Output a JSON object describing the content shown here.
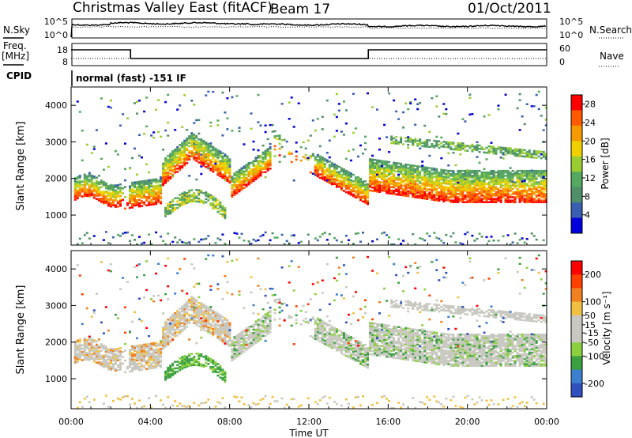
{
  "header": {
    "title": "Christmas Valley East (fitACF)",
    "beam": "Beam 17",
    "date": "01/Oct/2011"
  },
  "mini_panels": {
    "left_labels": {
      "nsky": "N.Sky",
      "freq": "Freq.",
      "freq_unit": "[MHz]",
      "cpid": "CPID"
    },
    "right_labels": {
      "nsearch": "N.Search",
      "nave": "Nave"
    },
    "noise_ticks": [
      "10^5",
      "10^0"
    ],
    "noise_right_ticks": [
      "10^5",
      "10^0"
    ],
    "freq_ticks": [
      "18",
      "8"
    ],
    "nave_ticks": [
      "60",
      "0"
    ],
    "cpid_text": "normal (fast) -151 IF"
  },
  "colors": {
    "power_scale": [
      "#0000dd",
      "#3a5fb0",
      "#4f8f6a",
      "#55a860",
      "#9acd32",
      "#f0d000",
      "#f59a00",
      "#ff5a00",
      "#ff0000"
    ],
    "velocity_scale": [
      "#3050c0",
      "#3c7fd0",
      "#3aa040",
      "#8cd040",
      "#c8c8c0",
      "#c8c8c0",
      "#f0c040",
      "#f08020",
      "#ff4000",
      "#ff0000"
    ]
  },
  "chart_data": [
    {
      "type": "heatmap",
      "panel": "power",
      "ylabel": "Slant Range [km]",
      "yticks": [
        "4000",
        "3000",
        "2000",
        "1000"
      ],
      "ylim": [
        180,
        4500
      ],
      "xlim": [
        "00:00",
        "24:00"
      ],
      "colorbar_label": "Power [dB]",
      "colorbar_ticks": [
        "28",
        "24",
        "20",
        "16",
        "12",
        "8",
        "4"
      ],
      "colorbar_range": [
        0,
        30
      ]
    },
    {
      "type": "heatmap",
      "panel": "velocity",
      "ylabel": "Slant Range [km]",
      "yticks": [
        "4000",
        "3000",
        "2000",
        "1000"
      ],
      "ylim": [
        180,
        4500
      ],
      "xlim": [
        "00:00",
        "24:00"
      ],
      "xticks": [
        "00:00",
        "04:00",
        "08:00",
        "12:00",
        "16:00",
        "20:00",
        "00:00"
      ],
      "xlabel": "Time UT",
      "colorbar_label": "Velocity [m s⁻¹]",
      "colorbar_ticks": [
        "200",
        "100",
        "50",
        "15",
        "-15",
        "-50",
        "-100",
        "-200"
      ],
      "colorbar_range": [
        -250,
        250
      ]
    }
  ]
}
